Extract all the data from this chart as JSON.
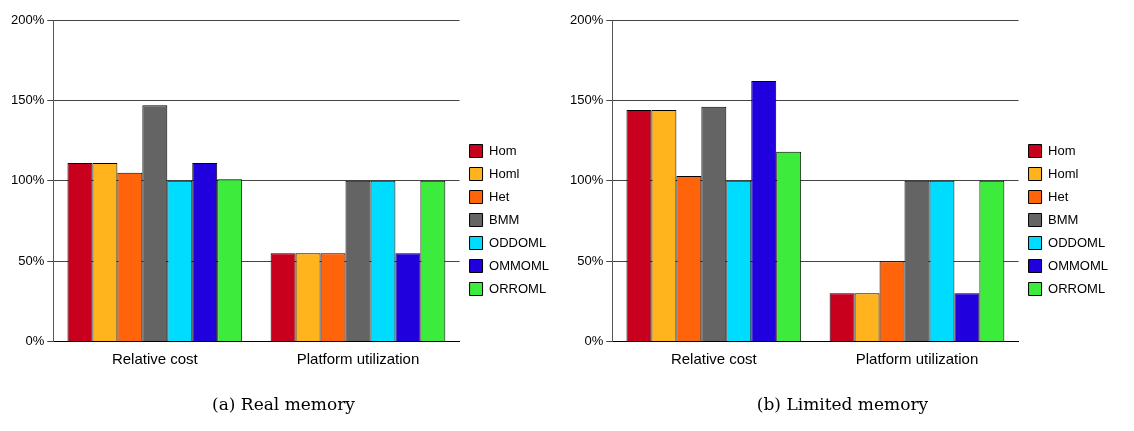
{
  "chart_data": [
    {
      "type": "bar",
      "title": "(a) Real memory",
      "categories": [
        "Relative cost",
        "Platform utilization"
      ],
      "series": [
        {
          "name": "Hom",
          "color": "#c8001e",
          "values": [
            111,
            55
          ]
        },
        {
          "name": "Homl",
          "color": "#ffb41e",
          "values": [
            111,
            55
          ]
        },
        {
          "name": "Het",
          "color": "#ff640a",
          "values": [
            105,
            55
          ]
        },
        {
          "name": "BMM",
          "color": "#646464",
          "values": [
            147,
            100
          ]
        },
        {
          "name": "ODDOML",
          "color": "#00dcff",
          "values": [
            100,
            100
          ]
        },
        {
          "name": "OMMOML",
          "color": "#2000dc",
          "values": [
            111,
            55
          ]
        },
        {
          "name": "ORROML",
          "color": "#3ceb3c",
          "values": [
            101,
            100
          ]
        }
      ],
      "ylim": [
        0,
        200
      ],
      "yticks": [
        {
          "value": 0,
          "label": "0%"
        },
        {
          "value": 50,
          "label": "50%"
        },
        {
          "value": 100,
          "label": "100%"
        },
        {
          "value": 150,
          "label": "150%"
        },
        {
          "value": 200,
          "label": "200%"
        }
      ],
      "grid": "y",
      "legend": "right"
    },
    {
      "type": "bar",
      "title": "(b) Limited memory",
      "categories": [
        "Relative cost",
        "Platform utilization"
      ],
      "series": [
        {
          "name": "Hom",
          "color": "#c8001e",
          "values": [
            144,
            30
          ]
        },
        {
          "name": "Homl",
          "color": "#ffb41e",
          "values": [
            144,
            30
          ]
        },
        {
          "name": "Het",
          "color": "#ff640a",
          "values": [
            103,
            50
          ]
        },
        {
          "name": "BMM",
          "color": "#646464",
          "values": [
            146,
            100
          ]
        },
        {
          "name": "ODDOML",
          "color": "#00dcff",
          "values": [
            100,
            100
          ]
        },
        {
          "name": "OMMOML",
          "color": "#2000dc",
          "values": [
            162,
            30
          ]
        },
        {
          "name": "ORROML",
          "color": "#3ceb3c",
          "values": [
            118,
            100
          ]
        }
      ],
      "ylim": [
        0,
        200
      ],
      "yticks": [
        {
          "value": 0,
          "label": "0%"
        },
        {
          "value": 50,
          "label": "50%"
        },
        {
          "value": 100,
          "label": "100%"
        },
        {
          "value": 150,
          "label": "150%"
        },
        {
          "value": 200,
          "label": "200%"
        }
      ],
      "grid": "y",
      "legend": "right"
    }
  ]
}
